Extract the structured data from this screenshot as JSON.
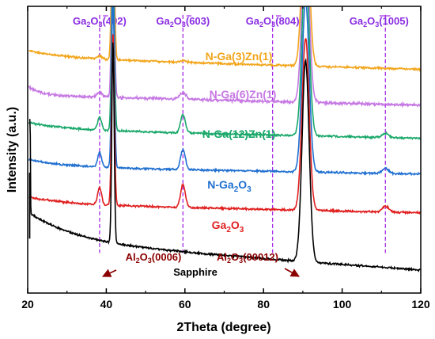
{
  "chart_data": {
    "type": "line",
    "xlabel": "2Theta (degree)",
    "ylabel": "Intensity (a.u.)",
    "xlim": [
      20,
      120
    ],
    "ylim": [
      0,
      100
    ],
    "x_ticks": [
      "20",
      "40",
      "60",
      "80",
      "100",
      "120"
    ],
    "y_ticks": [],
    "grid": false,
    "legend": "none",
    "reference_lines": [
      {
        "x": 38.3,
        "label_pre": "Ga",
        "label_sub1": "2",
        "label_mid": "O",
        "label_sub2": "3",
        "label_hkl": "(402)",
        "hkl_bar": "4",
        "color": "#a52ae6"
      },
      {
        "x": 59.5,
        "label_pre": "Ga",
        "label_sub1": "2",
        "label_mid": "O",
        "label_sub2": "3",
        "label_hkl": "(603)",
        "hkl_bar": "6",
        "color": "#a52ae6"
      },
      {
        "x": 82.3,
        "label_pre": "Ga",
        "label_sub1": "2",
        "label_mid": "O",
        "label_sub2": "3",
        "label_hkl": "(804)",
        "hkl_bar": "8",
        "color": "#a52ae6"
      },
      {
        "x": 111.0,
        "label_pre": "Ga",
        "label_sub1": "2",
        "label_mid": "O",
        "label_sub2": "3",
        "label_hkl": "(1005)",
        "hkl_bar": "10",
        "color": "#a52ae6"
      }
    ],
    "series": [
      {
        "name": "N-Ga(3)Zn(1)",
        "color": "#f2a51a",
        "baseline": 82,
        "drift": -4,
        "noise": 0.5,
        "peaks": [
          [
            38.3,
            1.0,
            0.6
          ],
          [
            41.7,
            60,
            0.35
          ],
          [
            59.5,
            0.6,
            0.8
          ],
          [
            90.7,
            60,
            0.9
          ]
        ]
      },
      {
        "name": "N-Ga(6)Zn(1)",
        "color": "#c678e3",
        "baseline": 69,
        "drift": -3.5,
        "noise": 0.7,
        "peaks": [
          [
            38.3,
            1.5,
            0.6
          ],
          [
            41.7,
            60,
            0.35
          ],
          [
            59.5,
            2.2,
            0.8
          ],
          [
            90.7,
            60,
            0.9
          ]
        ]
      },
      {
        "name": "N-Ga(12)Zn(1)",
        "color": "#1aa86a",
        "baseline": 57,
        "drift": -3,
        "noise": 0.5,
        "peaks": [
          [
            38.3,
            4.5,
            0.5
          ],
          [
            41.7,
            60,
            0.35
          ],
          [
            59.5,
            6.5,
            0.6
          ],
          [
            90.7,
            60,
            0.9
          ],
          [
            111.0,
            1.5,
            0.8
          ]
        ]
      },
      {
        "name": "N-Ga2O3",
        "label_main": "N-Ga",
        "label_sub": "2",
        "label_mid": "O",
        "label_sub2": "3",
        "color": "#1f6fd1",
        "baseline": 44,
        "drift": -2.5,
        "noise": 0.5,
        "peaks": [
          [
            38.3,
            5.0,
            0.5
          ],
          [
            41.7,
            60,
            0.35
          ],
          [
            59.5,
            7.0,
            0.6
          ],
          [
            90.7,
            60,
            0.9
          ],
          [
            111.0,
            1.8,
            0.8
          ]
        ]
      },
      {
        "name": "Ga2O3",
        "label_main": "Ga",
        "label_sub": "2",
        "label_mid": "O",
        "label_sub2": "3",
        "color": "#e01f1f",
        "baseline": 31,
        "drift": -3,
        "noise": 0.5,
        "peaks": [
          [
            38.3,
            6.0,
            0.5
          ],
          [
            41.7,
            60,
            0.35
          ],
          [
            59.5,
            8.0,
            0.6
          ],
          [
            90.7,
            60,
            0.9
          ],
          [
            111.0,
            2.0,
            0.8
          ]
        ]
      },
      {
        "name": "Sapphire",
        "color": "#000000",
        "baseline": 18,
        "drift": -10,
        "noise": 0.5,
        "peaks": [
          [
            20.6,
            40,
            0.08
          ],
          [
            41.7,
            70,
            0.3
          ],
          [
            90.7,
            70,
            0.9
          ]
        ]
      }
    ],
    "annotations": [
      {
        "text_pre": "Al",
        "sub1": "2",
        "text_mid": "O",
        "sub2": "3",
        "text_post": "(0006)",
        "points_to_x": 41.7,
        "from": "left"
      },
      {
        "text_pre": "Al",
        "sub1": "2",
        "text_mid": "O",
        "sub2": "3",
        "text_post": "(00012)",
        "points_to_x": 90.7,
        "from": "left"
      }
    ],
    "sapphire_label": "Sapphire"
  }
}
